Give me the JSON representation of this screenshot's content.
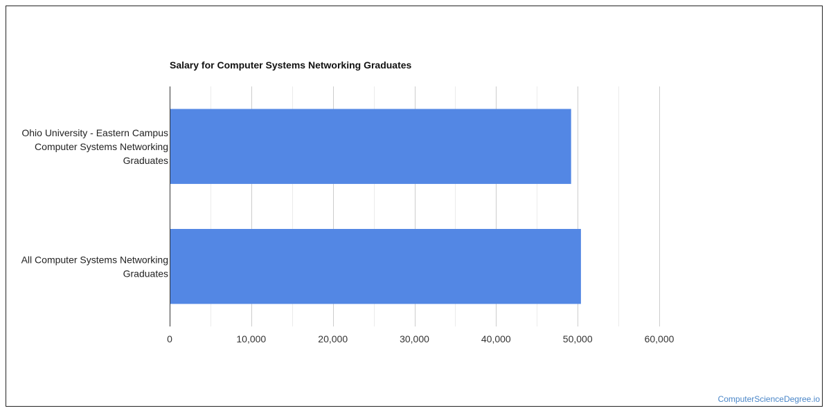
{
  "chart_data": {
    "type": "bar",
    "orientation": "horizontal",
    "title": "Salary for Computer Systems Networking Graduates",
    "categories": [
      "Ohio University - Eastern Campus Computer Systems Networking Graduates",
      "All Computer Systems Networking Graduates"
    ],
    "category_label_lines": [
      [
        "Ohio University - Eastern Campus",
        "Computer Systems Networking",
        "Graduates"
      ],
      [
        "All Computer Systems Networking",
        "Graduates"
      ]
    ],
    "values": [
      49200,
      50400
    ],
    "xlim": [
      0,
      60000
    ],
    "x_ticks": [
      0,
      10000,
      20000,
      30000,
      40000,
      50000,
      60000
    ],
    "x_tick_labels": [
      "0",
      "10,000",
      "20,000",
      "30,000",
      "40,000",
      "50,000",
      "60,000"
    ],
    "xlabel": "",
    "ylabel": "",
    "grid": true,
    "bar_color": "#5387e4",
    "gridline_color": "#d9d9d9"
  },
  "footer": {
    "watermark": "ComputerScienceDegree.io"
  }
}
